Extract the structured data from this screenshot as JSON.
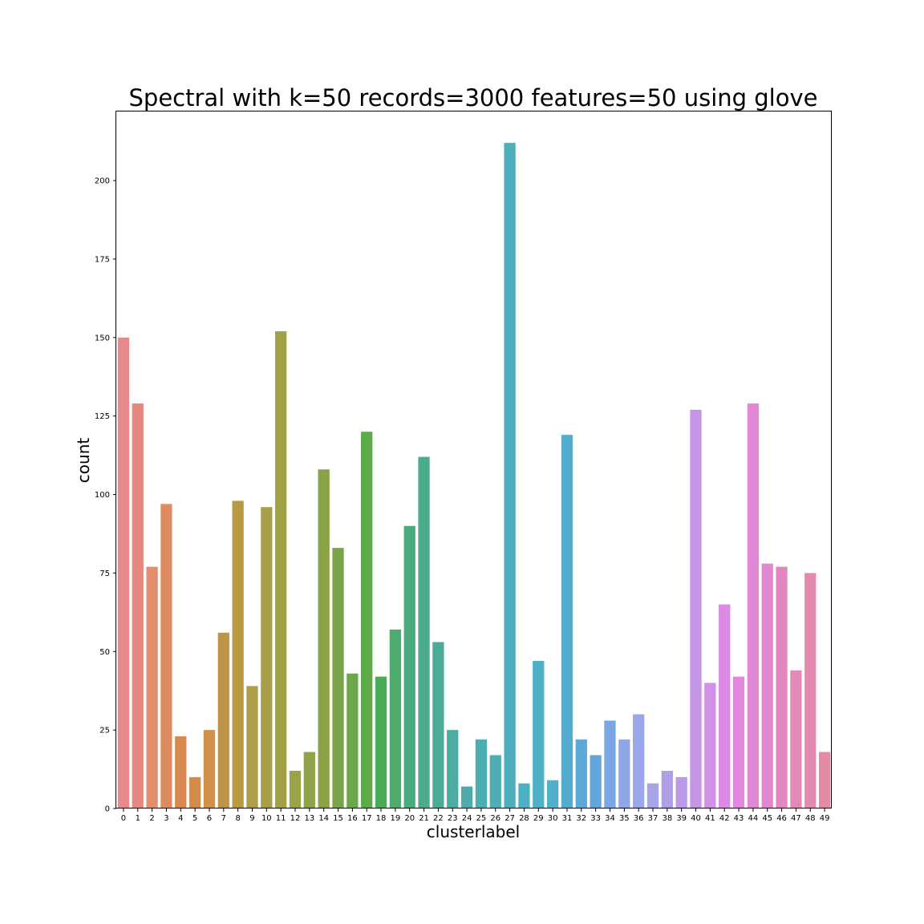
{
  "chart_data": {
    "type": "bar",
    "title": "Spectral with k=50 records=3000 features=50 using glove",
    "xlabel": "clusterlabel",
    "ylabel": "count",
    "ylim": [
      0,
      222
    ],
    "yticks": [
      0,
      25,
      50,
      75,
      100,
      125,
      150,
      175,
      200
    ],
    "grid": false,
    "categories": [
      "0",
      "1",
      "2",
      "3",
      "4",
      "5",
      "6",
      "7",
      "8",
      "9",
      "10",
      "11",
      "12",
      "13",
      "14",
      "15",
      "16",
      "17",
      "18",
      "19",
      "20",
      "21",
      "22",
      "23",
      "24",
      "25",
      "26",
      "27",
      "28",
      "29",
      "30",
      "31",
      "32",
      "33",
      "34",
      "35",
      "36",
      "37",
      "38",
      "39",
      "40",
      "41",
      "42",
      "43",
      "44",
      "45",
      "46",
      "47",
      "48",
      "49"
    ],
    "values": [
      150,
      129,
      77,
      97,
      23,
      10,
      25,
      56,
      98,
      39,
      96,
      152,
      12,
      18,
      108,
      83,
      43,
      120,
      42,
      57,
      90,
      112,
      53,
      25,
      7,
      22,
      17,
      212,
      8,
      47,
      9,
      119,
      22,
      17,
      28,
      22,
      30,
      8,
      12,
      10,
      127,
      40,
      65,
      42,
      129,
      78,
      77,
      44,
      75,
      18
    ],
    "colors": [
      "#e8898b",
      "#e5887e",
      "#e28e71",
      "#df8b61",
      "#d9884f",
      "#d38b47",
      "#cf9047",
      "#bf9447",
      "#b89a45",
      "#b09d48",
      "#a99f48",
      "#a2a148",
      "#9aa446",
      "#90a346",
      "#87a346",
      "#79a548",
      "#6ca849",
      "#5bab49",
      "#4aab57",
      "#4cab6d",
      "#4bab7d",
      "#4cab8a",
      "#4cab96",
      "#4caca1",
      "#4daca9",
      "#4daeb0",
      "#4eaeb8",
      "#4faebe",
      "#4eb0c3",
      "#4eb0c7",
      "#4fb0cc",
      "#52acd0",
      "#5aa9d7",
      "#63a6dc",
      "#7aa7e3",
      "#8ea8e6",
      "#9aa7e8",
      "#a4a4e6",
      "#ae9fe8",
      "#b99ce8",
      "#c595e6",
      "#d290e6",
      "#dc8ae6",
      "#e286e0",
      "#e286d6",
      "#e286cd",
      "#e387c3",
      "#e389b8",
      "#e38aae",
      "#e38ca4"
    ]
  }
}
